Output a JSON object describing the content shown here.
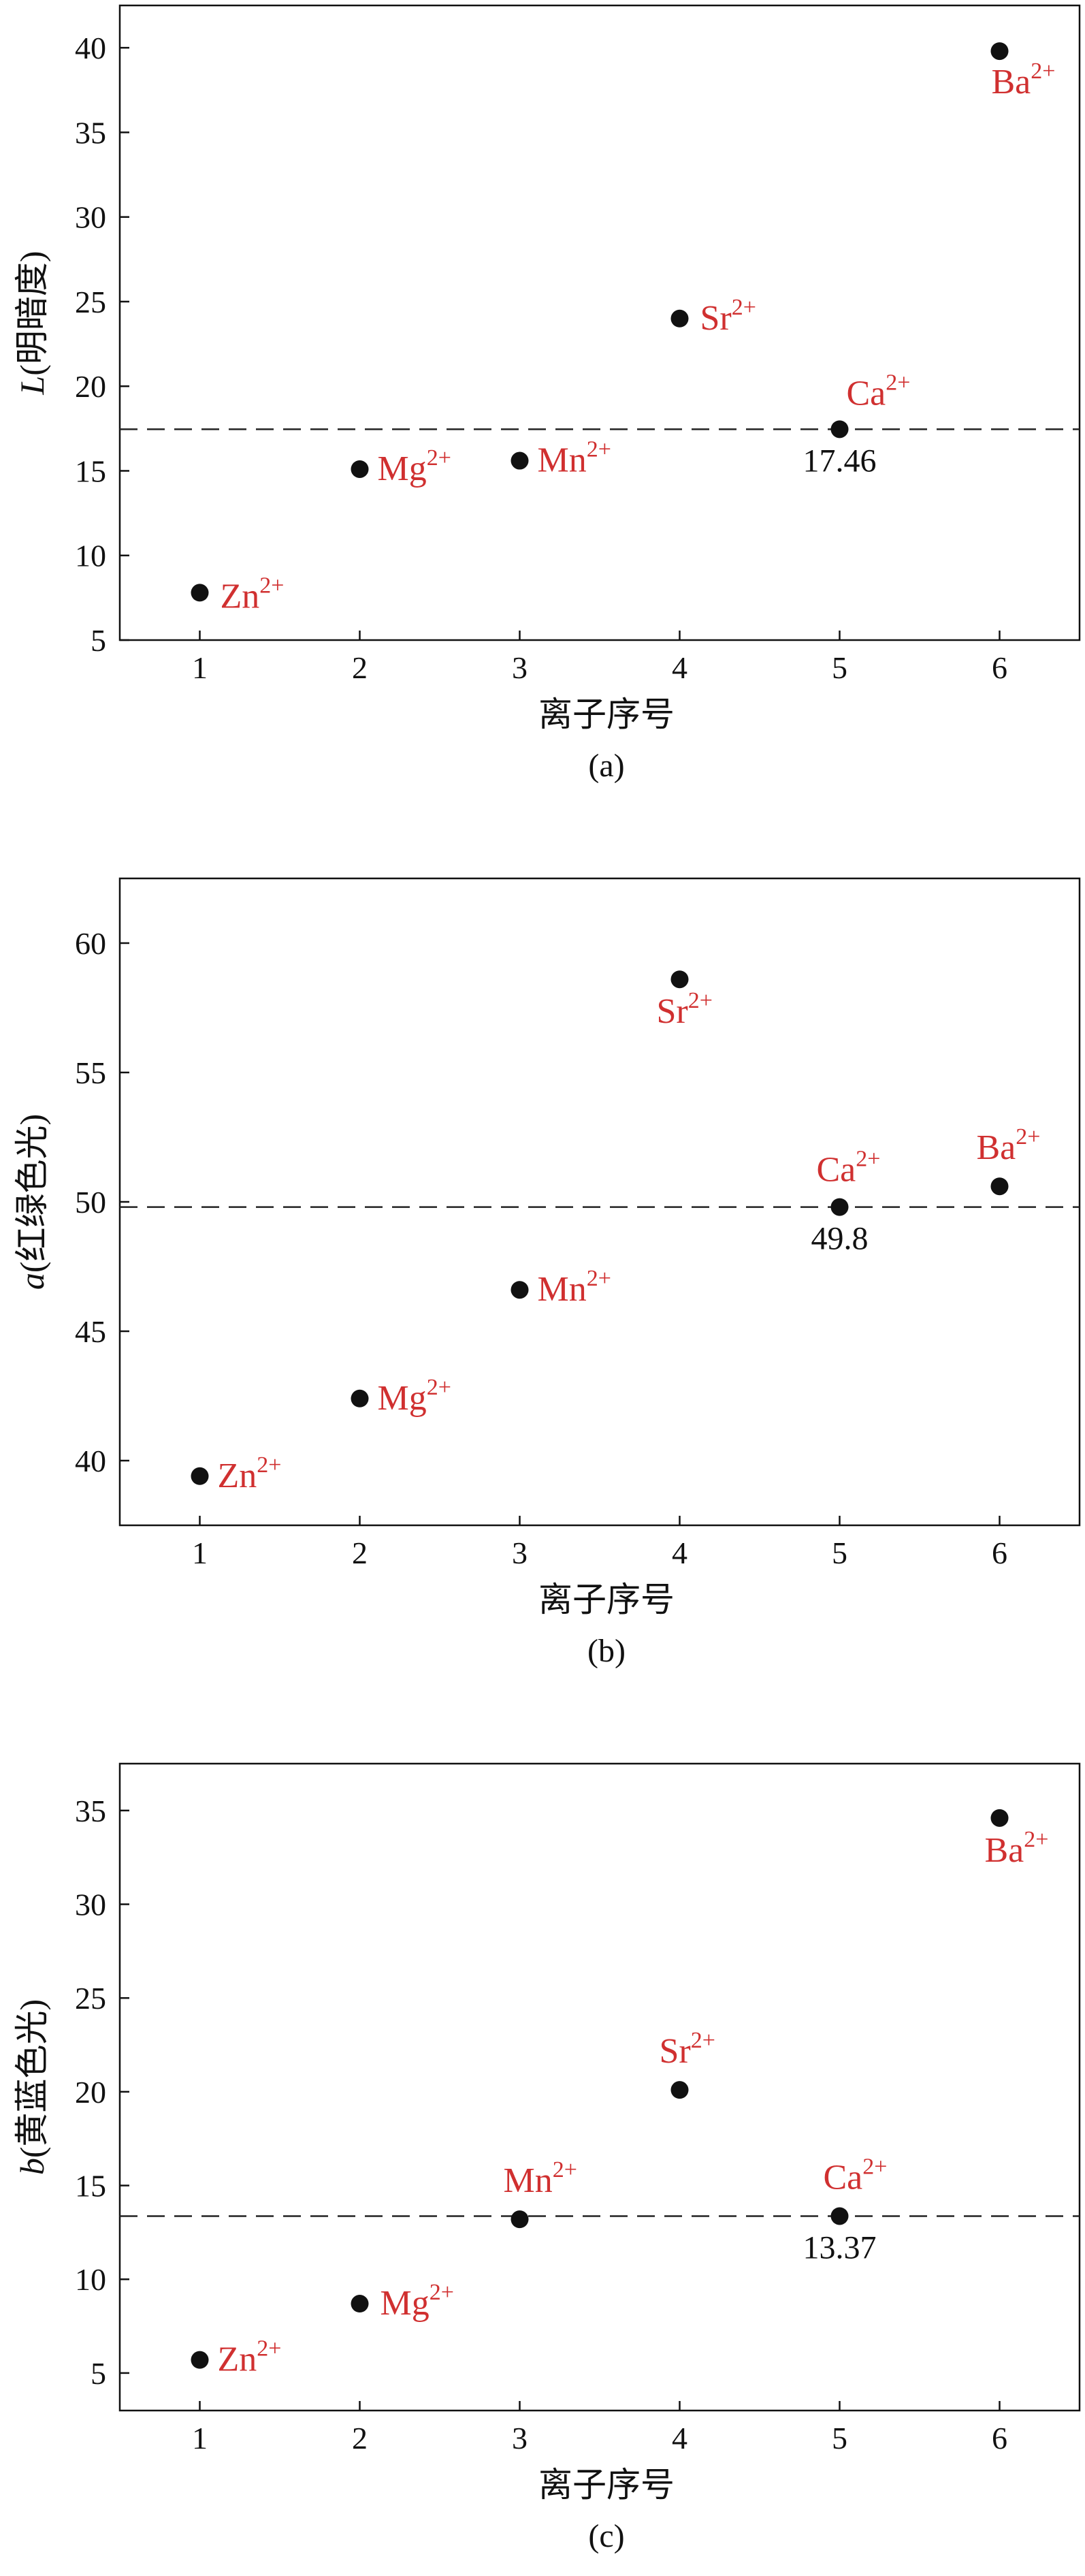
{
  "chart_data": [
    {
      "type": "scatter",
      "caption": "(a)",
      "xlabel": "离子序号",
      "ylabel": "L(明暗度)",
      "ylabel_italic": "L",
      "ylabel_rest": "(明暗度)",
      "xlim": [
        0.5,
        6.5
      ],
      "ylim": [
        5,
        42.5
      ],
      "xticks": [
        1,
        2,
        3,
        4,
        5,
        6
      ],
      "yticks": [
        5,
        10,
        15,
        20,
        25,
        30,
        35,
        40
      ],
      "grid": false,
      "reference_line": {
        "y": 17.46,
        "label": "17.46",
        "style": "dashed"
      },
      "points": [
        {
          "x": 1,
          "y": 7.8,
          "ion": "Zn",
          "charge": "2+"
        },
        {
          "x": 2,
          "y": 15.1,
          "ion": "Mg",
          "charge": "2+"
        },
        {
          "x": 3,
          "y": 15.6,
          "ion": "Mn",
          "charge": "2+"
        },
        {
          "x": 4,
          "y": 24.0,
          "ion": "Sr",
          "charge": "2+"
        },
        {
          "x": 5,
          "y": 17.46,
          "ion": "Ca",
          "charge": "2+"
        },
        {
          "x": 6,
          "y": 39.8,
          "ion": "Ba",
          "charge": "2+"
        }
      ],
      "colors": {
        "marker": "#111111",
        "label": "#d03030",
        "line": "#222222"
      }
    },
    {
      "type": "scatter",
      "caption": "(b)",
      "xlabel": "离子序号",
      "ylabel": "a(红绿色光)",
      "ylabel_italic": "a",
      "ylabel_rest": "(红绿色光)",
      "xlim": [
        0.5,
        6.5
      ],
      "ylim": [
        37.5,
        62.5
      ],
      "xticks": [
        1,
        2,
        3,
        4,
        5,
        6
      ],
      "yticks": [
        40,
        45,
        50,
        55,
        60
      ],
      "grid": false,
      "reference_line": {
        "y": 49.8,
        "label": "49.8",
        "style": "dashed"
      },
      "points": [
        {
          "x": 1,
          "y": 39.4,
          "ion": "Zn",
          "charge": "2+"
        },
        {
          "x": 2,
          "y": 42.4,
          "ion": "Mg",
          "charge": "2+"
        },
        {
          "x": 3,
          "y": 46.6,
          "ion": "Mn",
          "charge": "2+"
        },
        {
          "x": 4,
          "y": 58.6,
          "ion": "Sr",
          "charge": "2+"
        },
        {
          "x": 5,
          "y": 49.8,
          "ion": "Ca",
          "charge": "2+"
        },
        {
          "x": 6,
          "y": 50.6,
          "ion": "Ba",
          "charge": "2+"
        }
      ],
      "colors": {
        "marker": "#111111",
        "label": "#d03030",
        "line": "#222222"
      }
    },
    {
      "type": "scatter",
      "caption": "(c)",
      "xlabel": "离子序号",
      "ylabel": "b(黄蓝色光)",
      "ylabel_italic": "b",
      "ylabel_rest": "(黄蓝色光)",
      "xlim": [
        0.5,
        6.5
      ],
      "ylim": [
        3,
        37.5
      ],
      "xticks": [
        1,
        2,
        3,
        4,
        5,
        6
      ],
      "yticks": [
        5,
        10,
        15,
        20,
        25,
        30,
        35
      ],
      "grid": false,
      "reference_line": {
        "y": 13.37,
        "label": "13.37",
        "style": "dashed"
      },
      "points": [
        {
          "x": 1,
          "y": 5.7,
          "ion": "Zn",
          "charge": "2+"
        },
        {
          "x": 2,
          "y": 8.7,
          "ion": "Mg",
          "charge": "2+"
        },
        {
          "x": 3,
          "y": 13.2,
          "ion": "Mn",
          "charge": "2+"
        },
        {
          "x": 4,
          "y": 20.1,
          "ion": "Sr",
          "charge": "2+"
        },
        {
          "x": 5,
          "y": 13.37,
          "ion": "Ca",
          "charge": "2+"
        },
        {
          "x": 6,
          "y": 34.6,
          "ion": "Ba",
          "charge": "2+"
        }
      ],
      "colors": {
        "marker": "#111111",
        "label": "#d03030",
        "line": "#222222"
      }
    }
  ]
}
